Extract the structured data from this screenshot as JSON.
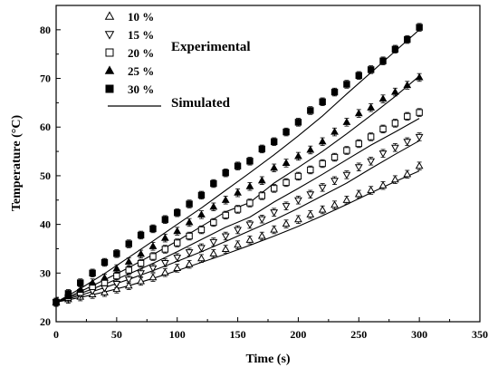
{
  "chart_data": {
    "type": "scatter",
    "xlabel": "Time (s)",
    "ylabel": "Temperature (°C)",
    "xlim": [
      0,
      350
    ],
    "ylim": [
      20,
      85
    ],
    "xticks": [
      0,
      50,
      100,
      150,
      200,
      250,
      300,
      350
    ],
    "yticks": [
      20,
      30,
      40,
      50,
      60,
      70,
      80
    ],
    "grid": false,
    "legend_position": "top-left",
    "annotations": [
      "Experimental",
      "Simulated"
    ],
    "x": [
      0,
      10,
      20,
      30,
      40,
      50,
      60,
      70,
      80,
      90,
      100,
      110,
      120,
      130,
      140,
      150,
      160,
      170,
      180,
      190,
      200,
      210,
      220,
      230,
      240,
      250,
      260,
      270,
      280,
      290,
      300
    ],
    "series": [
      {
        "name": "10 %",
        "marker": "triangle-up-open",
        "values": [
          24.0,
          24.6,
          25.1,
          25.6,
          26.0,
          26.7,
          27.4,
          28.3,
          29.1,
          30.1,
          31.0,
          31.8,
          33.0,
          34.0,
          34.9,
          35.8,
          36.8,
          37.6,
          38.9,
          40.1,
          41.0,
          42.0,
          43.0,
          44.0,
          45.0,
          46.2,
          47.0,
          48.0,
          49.2,
          50.3,
          52.0
        ]
      },
      {
        "name": "15 %",
        "marker": "triangle-down-open",
        "values": [
          24.0,
          24.9,
          25.6,
          26.3,
          26.9,
          27.8,
          28.7,
          30.0,
          31.0,
          32.1,
          33.2,
          34.3,
          35.2,
          36.4,
          37.6,
          38.9,
          40.0,
          41.1,
          42.5,
          43.8,
          45.0,
          46.2,
          47.6,
          49.0,
          50.2,
          51.8,
          53.0,
          54.6,
          55.8,
          57.0,
          58.0
        ]
      },
      {
        "name": "20 %",
        "marker": "square-open",
        "values": [
          24.0,
          25.0,
          26.0,
          27.2,
          28.0,
          29.4,
          30.6,
          32.0,
          33.4,
          34.9,
          36.2,
          37.6,
          38.9,
          40.4,
          41.9,
          43.1,
          44.4,
          45.9,
          47.4,
          48.6,
          49.9,
          51.2,
          52.5,
          53.8,
          55.2,
          56.6,
          58.0,
          59.6,
          60.8,
          62.2,
          63.0
        ]
      },
      {
        "name": "25 %",
        "marker": "triangle-up-filled",
        "values": [
          24.0,
          25.2,
          26.5,
          28.0,
          29.0,
          30.9,
          32.3,
          33.9,
          35.5,
          37.2,
          38.6,
          40.4,
          42.0,
          43.6,
          45.0,
          46.5,
          47.8,
          49.0,
          51.6,
          52.6,
          54.0,
          55.3,
          57.0,
          59.0,
          61.0,
          62.8,
          64.0,
          65.8,
          67.2,
          68.6,
          70.2
        ]
      },
      {
        "name": "30 %",
        "marker": "square-filled",
        "values": [
          24.0,
          25.8,
          28.0,
          30.0,
          32.2,
          34.0,
          36.0,
          37.8,
          39.1,
          41.0,
          42.4,
          44.2,
          46.0,
          48.4,
          50.6,
          52.0,
          53.0,
          55.5,
          57.0,
          59.0,
          61.0,
          63.4,
          65.2,
          67.2,
          68.8,
          70.6,
          71.8,
          73.6,
          76.0,
          78.0,
          80.5
        ]
      }
    ],
    "simulated": {
      "name": "Simulated",
      "x": [
        0,
        20,
        40,
        60,
        80,
        100,
        120,
        140,
        160,
        180,
        200,
        220,
        240,
        260,
        280,
        300
      ],
      "series": [
        [
          24.0,
          25.0,
          26.1,
          27.4,
          28.9,
          30.5,
          32.2,
          33.9,
          35.7,
          37.6,
          39.6,
          41.8,
          44.1,
          46.5,
          48.8,
          51.0
        ],
        [
          24.0,
          25.4,
          27.0,
          28.7,
          30.5,
          32.4,
          34.4,
          36.5,
          38.7,
          40.9,
          43.3,
          45.9,
          48.5,
          51.5,
          54.4,
          57.2
        ],
        [
          24.0,
          25.8,
          27.7,
          29.8,
          32.0,
          34.4,
          36.9,
          39.4,
          41.5,
          44.6,
          47.4,
          50.3,
          53.3,
          56.3,
          59.0,
          61.8
        ],
        [
          24.0,
          26.2,
          28.6,
          31.1,
          33.8,
          36.6,
          39.6,
          42.6,
          44.5,
          48.5,
          51.7,
          55.0,
          58.6,
          62.4,
          66.3,
          70.5
        ],
        [
          24.0,
          26.8,
          29.9,
          33.2,
          36.6,
          40.0,
          43.4,
          47.0,
          50.6,
          54.3,
          58.2,
          62.3,
          66.8,
          71.2,
          75.6,
          80.0
        ]
      ]
    },
    "error_bar": 0.8
  }
}
